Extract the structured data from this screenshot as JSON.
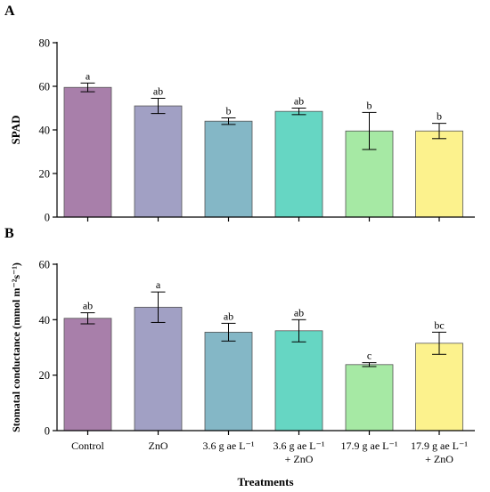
{
  "panels": [
    {
      "label": "A",
      "ylabel": "SPAD",
      "xlabel": "",
      "show_xticklabels": false
    },
    {
      "label": "B",
      "ylabel": "Stomatal conductance (mmol m⁻²s⁻¹)",
      "xlabel": "Treatments",
      "show_xticklabels": true
    }
  ],
  "category_labels": [
    [
      "Control"
    ],
    [
      "ZnO"
    ],
    [
      "3.6 g ae L⁻¹"
    ],
    [
      "3.6 g ae L⁻¹",
      "+ ZnO"
    ],
    [
      "17.9 g ae L⁻¹"
    ],
    [
      "17.9 g ae L⁻¹",
      "+ ZnO"
    ]
  ],
  "bar_colors": [
    "#a87faa",
    "#a1a0c4",
    "#84b7c6",
    "#66d6c3",
    "#a6e9a4",
    "#fcf28d"
  ],
  "chart_data": [
    {
      "type": "bar",
      "panel": "A",
      "categories": [
        "Control",
        "ZnO",
        "3.6 g ae L⁻¹",
        "3.6 g ae L⁻¹ + ZnO",
        "17.9 g ae L⁻¹",
        "17.9 g ae L⁻¹ + ZnO"
      ],
      "values": [
        59.5,
        51,
        44,
        48.5,
        39.5,
        39.5
      ],
      "errors": [
        2,
        3.5,
        1.5,
        1.5,
        8.5,
        3.5
      ],
      "significance": [
        "a",
        "ab",
        "b",
        "ab",
        "b",
        "b"
      ],
      "ylabel": "SPAD",
      "xlabel": "",
      "ylim": [
        0,
        80
      ],
      "yticks": [
        0,
        20,
        40,
        60,
        80
      ],
      "grid": false
    },
    {
      "type": "bar",
      "panel": "B",
      "categories": [
        "Control",
        "ZnO",
        "3.6 g ae L⁻¹",
        "3.6 g ae L⁻¹ + ZnO",
        "17.9 g ae L⁻¹",
        "17.9 g ae L⁻¹ + ZnO"
      ],
      "values": [
        40.5,
        44.5,
        35.5,
        36,
        23.8,
        31.5
      ],
      "errors": [
        2,
        5.5,
        3.2,
        4,
        0.7,
        4
      ],
      "significance": [
        "ab",
        "a",
        "ab",
        "ab",
        "c",
        "bc"
      ],
      "ylabel": "Stomatal conductance (mmol m⁻²s⁻¹)",
      "xlabel": "Treatments",
      "ylim": [
        0,
        60
      ],
      "yticks": [
        0,
        20,
        40,
        60
      ],
      "grid": false
    }
  ]
}
